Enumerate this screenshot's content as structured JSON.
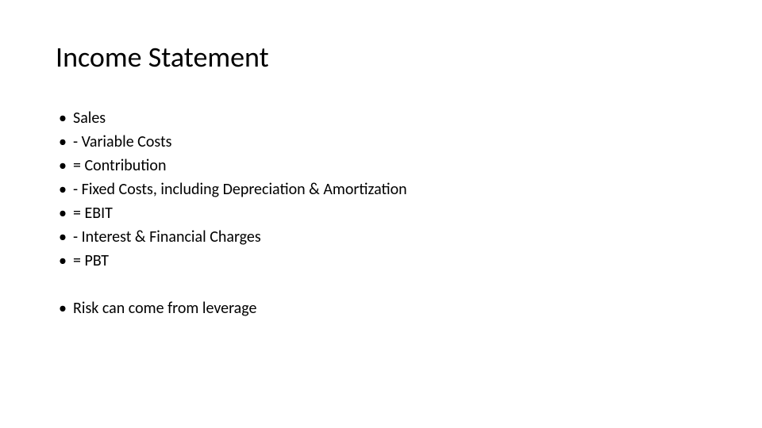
{
  "slide": {
    "title": "Income Statement",
    "title_fontsize": 36,
    "title_fontweight": 400,
    "title_color": "#000000",
    "background_color": "#ffffff",
    "body_fontsize": 20,
    "body_color": "#000000",
    "bullet_char": "•",
    "main_list": [
      "Sales",
      "- Variable Costs",
      "= Contribution",
      "- Fixed Costs, including Depreciation & Amortization",
      "= EBIT",
      "- Interest & Financial Charges",
      "= PBT"
    ],
    "secondary_list": [
      "Risk can come from leverage"
    ]
  }
}
